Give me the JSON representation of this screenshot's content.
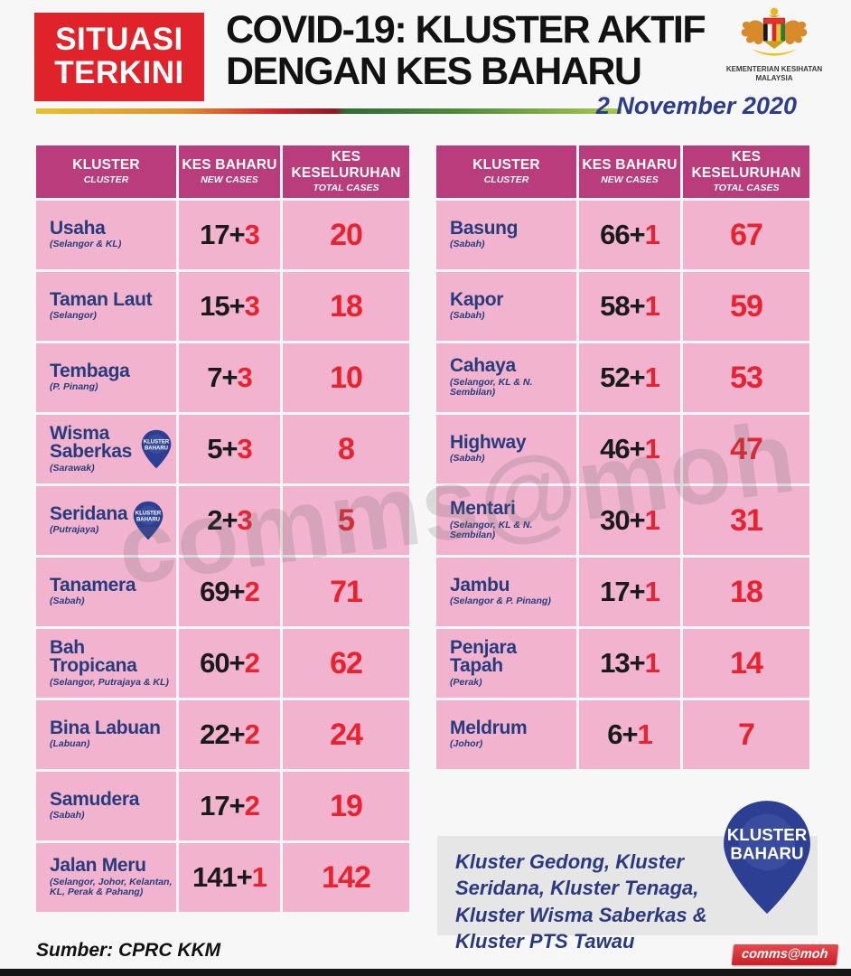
{
  "header": {
    "badge_line1": "SITUASI",
    "badge_line2": "TERKINI",
    "title_line1": "COVID-19: KLUSTER AKTIF",
    "title_line2": "DENGAN KES BAHARU",
    "ministry_line1": "KEMENTERIAN KESIHATAN",
    "ministry_line2": "MALAYSIA",
    "date": "2 November 2020"
  },
  "table_headers": {
    "col1_main": "KLUSTER",
    "col1_sub": "CLUSTER",
    "col2_main": "KES BAHARU",
    "col2_sub": "NEW CASES",
    "col3_main": "KES KESELURUHAN",
    "col3_sub": "TOTAL CASES"
  },
  "pin_label": {
    "line1": "KLUSTER",
    "line2": "BAHARU"
  },
  "tables": {
    "left": [
      {
        "name": "Usaha",
        "location": "(Selangor & KL)",
        "prev": "17",
        "new": "3",
        "total": "20",
        "new_badge": false
      },
      {
        "name": "Taman Laut",
        "location": "(Selangor)",
        "prev": "15",
        "new": "3",
        "total": "18",
        "new_badge": false
      },
      {
        "name": "Tembaga",
        "location": "(P. Pinang)",
        "prev": "7",
        "new": "3",
        "total": "10",
        "new_badge": false
      },
      {
        "name": "Wisma Saberkas",
        "location": "(Sarawak)",
        "prev": "5",
        "new": "3",
        "total": "8",
        "new_badge": true
      },
      {
        "name": "Seridana",
        "location": "(Putrajaya)",
        "prev": "2",
        "new": "3",
        "total": "5",
        "new_badge": true
      },
      {
        "name": "Tanamera",
        "location": "(Sabah)",
        "prev": "69",
        "new": "2",
        "total": "71",
        "new_badge": false
      },
      {
        "name": "Bah Tropicana",
        "location": "(Selangor, Putrajaya & KL)",
        "prev": "60",
        "new": "2",
        "total": "62",
        "new_badge": false
      },
      {
        "name": "Bina Labuan",
        "location": "(Labuan)",
        "prev": "22",
        "new": "2",
        "total": "24",
        "new_badge": false
      },
      {
        "name": "Samudera",
        "location": "(Sabah)",
        "prev": "17",
        "new": "2",
        "total": "19",
        "new_badge": false
      },
      {
        "name": "Jalan Meru",
        "location": "(Selangor, Johor, Kelantan, KL, Perak & Pahang)",
        "prev": "141",
        "new": "1",
        "total": "142",
        "new_badge": false
      }
    ],
    "right": [
      {
        "name": "Basung",
        "location": "(Sabah)",
        "prev": "66",
        "new": "1",
        "total": "67",
        "new_badge": false
      },
      {
        "name": "Kapor",
        "location": "(Sabah)",
        "prev": "58",
        "new": "1",
        "total": "59",
        "new_badge": false
      },
      {
        "name": "Cahaya",
        "location": "(Selangor, KL & N. Sembilan)",
        "prev": "52",
        "new": "1",
        "total": "53",
        "new_badge": false
      },
      {
        "name": "Highway",
        "location": "(Sabah)",
        "prev": "46",
        "new": "1",
        "total": "47",
        "new_badge": false
      },
      {
        "name": "Mentari",
        "location": "(Selangor, KL & N. Sembilan)",
        "prev": "30",
        "new": "1",
        "total": "31",
        "new_badge": false
      },
      {
        "name": "Jambu",
        "location": "(Selangor & P. Pinang)",
        "prev": "17",
        "new": "1",
        "total": "18",
        "new_badge": false
      },
      {
        "name": "Penjara Tapah",
        "location": "(Perak)",
        "prev": "13",
        "new": "1",
        "total": "14",
        "new_badge": false
      },
      {
        "name": "Meldrum",
        "location": "(Johor)",
        "prev": "6",
        "new": "1",
        "total": "7",
        "new_badge": false
      }
    ]
  },
  "footer": {
    "new_cluster_note": "Kluster Gedong, Kluster Seridana, Kluster Tenaga, Kluster Wisma Saberkas & Kluster PTS Tawau",
    "source": "Sumber: CPRC KKM",
    "comms_badge": "comms@moh"
  },
  "watermark": "comms@moh",
  "colors": {
    "header_magenta": "#B93C7D",
    "row_pink": "#F1B3CD",
    "accent_red": "#E8222E",
    "situasi_red": "#E0222A",
    "navy_text": "#273B7D",
    "pin_navy": "#2D3F92",
    "badge_red": "#C91F26"
  }
}
